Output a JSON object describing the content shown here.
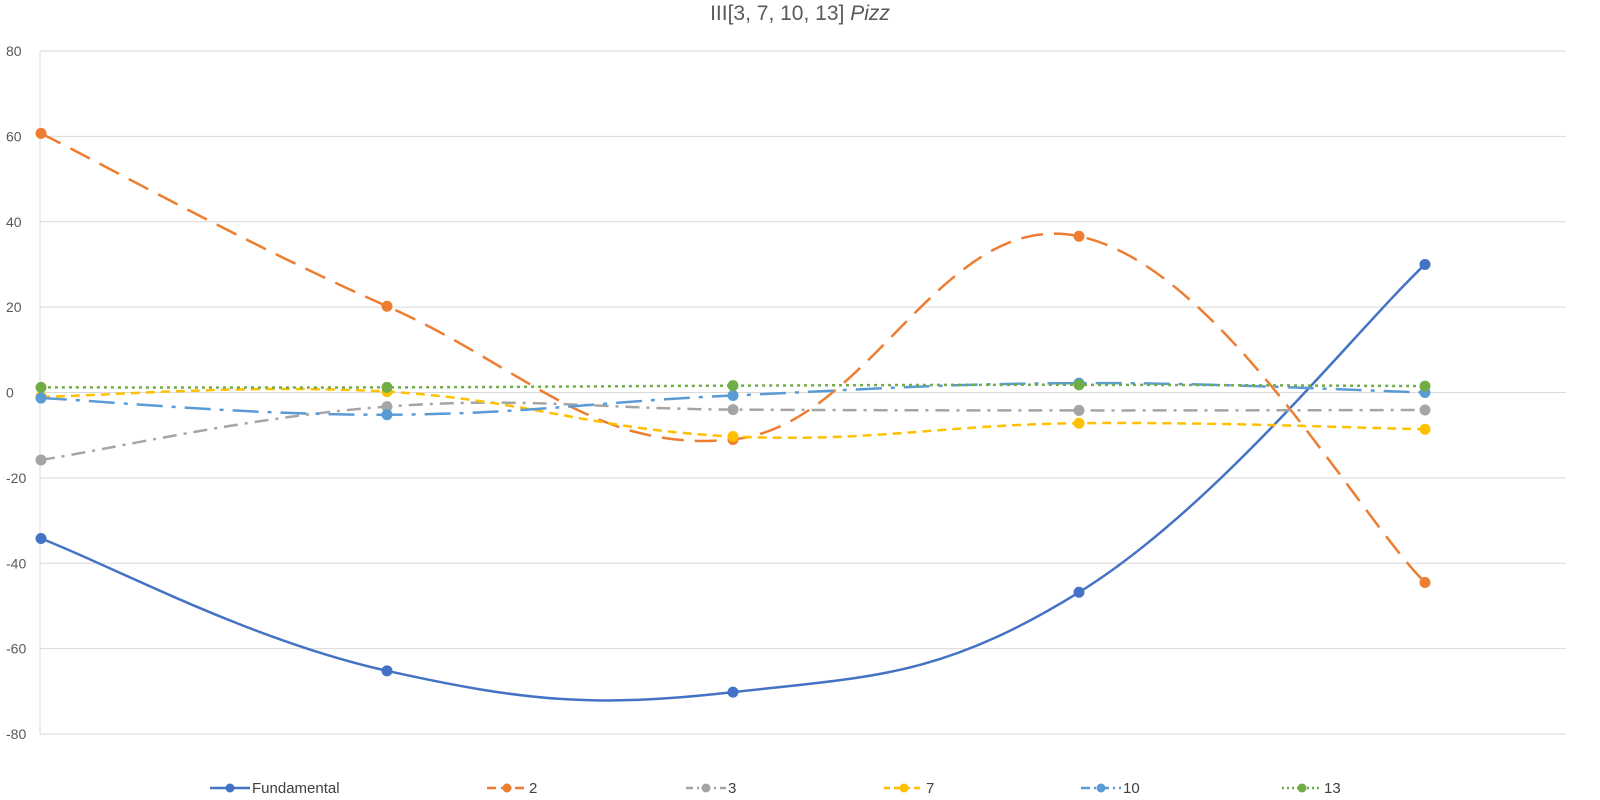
{
  "title": {
    "main": "III[3, 7, 10, 13]",
    "italic": "Pizz"
  },
  "chart_data": {
    "type": "line",
    "title": "III[3, 7, 10, 13] Pizz",
    "x": [
      1,
      2,
      3,
      4,
      5
    ],
    "ylim": [
      -80,
      80
    ],
    "yticks": [
      80,
      60,
      40,
      20,
      0,
      -20,
      -40,
      -60,
      -80
    ],
    "grid": true,
    "legend_position": "bottom",
    "smooth": true,
    "series": [
      {
        "name": "Fundamental",
        "color": "#4472C4",
        "dash": "solid",
        "values": [
          -34.2,
          -65.2,
          -70.2,
          -46.8,
          30.0
        ]
      },
      {
        "name": "2",
        "color": "#ED7D31",
        "dash": "dash",
        "values": [
          60.7,
          20.2,
          -11.0,
          36.6,
          -44.5
        ]
      },
      {
        "name": "3",
        "color": "#A5A5A5",
        "dash": "dashdot",
        "values": [
          -15.8,
          -3.3,
          -4.0,
          -4.2,
          -4.1
        ]
      },
      {
        "name": "7",
        "color": "#FFC000",
        "dash": "shortdash",
        "values": [
          -1.0,
          0.2,
          -10.3,
          -7.2,
          -8.6
        ]
      },
      {
        "name": "10",
        "color": "#5B9BD5",
        "dash": "longdashdot",
        "values": [
          -1.3,
          -5.2,
          -0.7,
          2.2,
          0.0
        ]
      },
      {
        "name": "13",
        "color": "#70AD47",
        "dash": "dot",
        "values": [
          1.2,
          1.2,
          1.6,
          1.8,
          1.5
        ]
      }
    ]
  }
}
